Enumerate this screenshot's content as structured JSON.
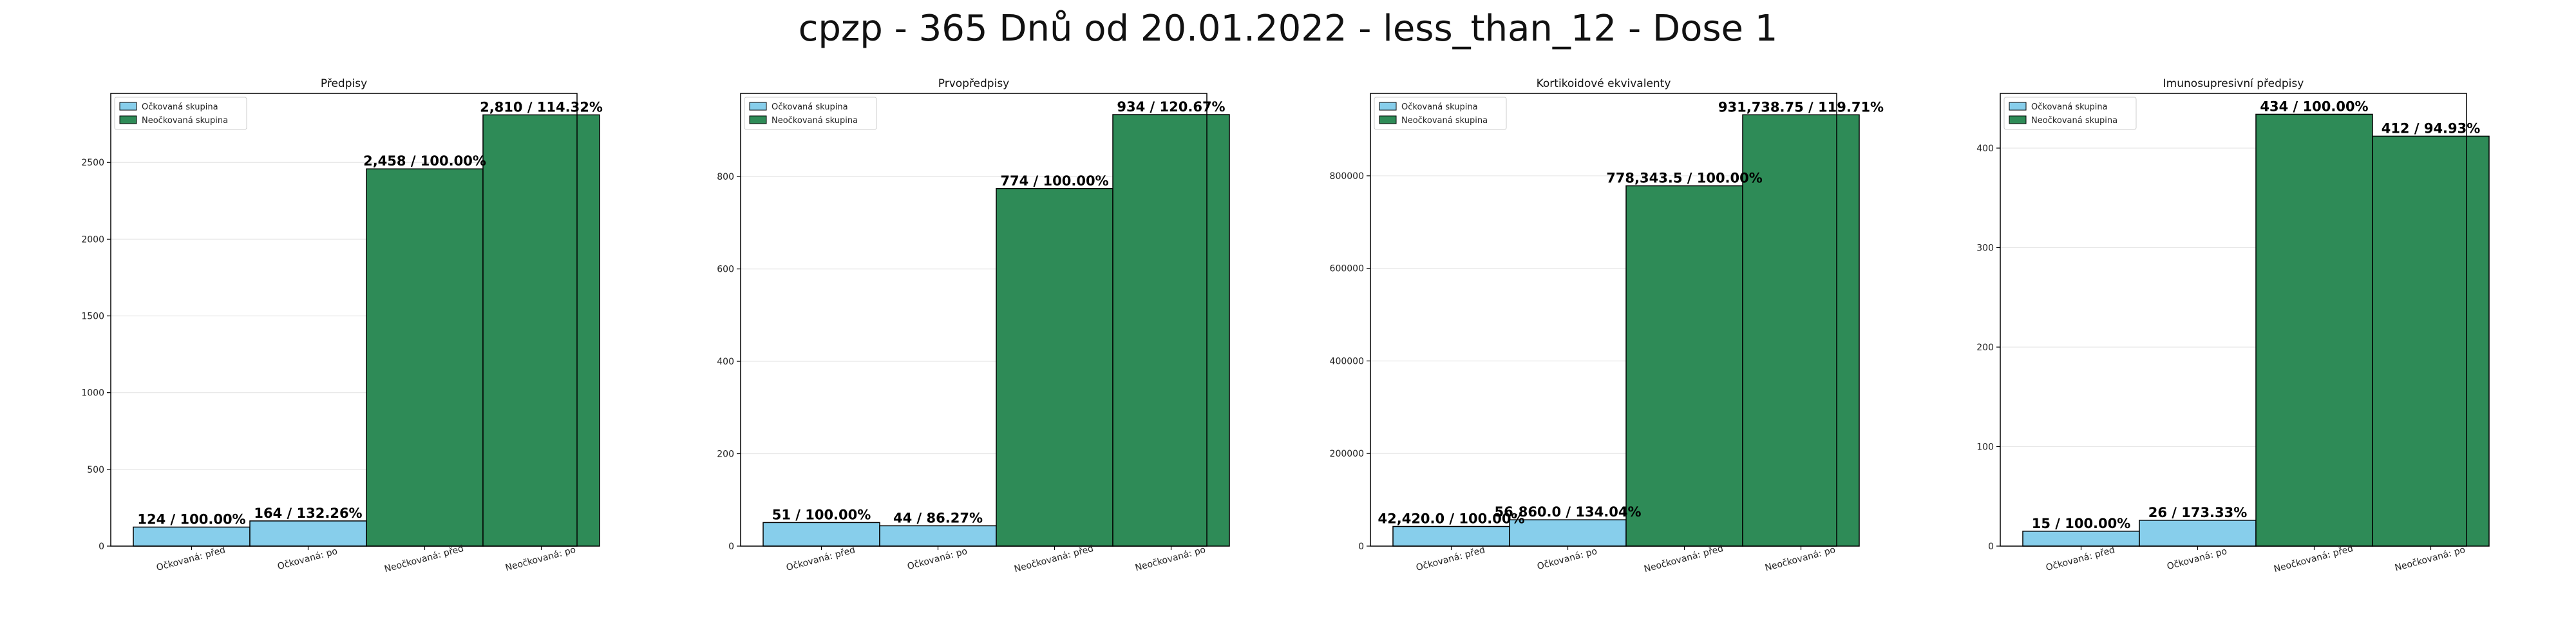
{
  "figure_title": "cpzp - 365 Dnů od 20.01.2022 - less_than_12 - Dose 1",
  "colors": {
    "vaccinated": "#87ceeb",
    "unvaccinated": "#2e8b57",
    "edge": "#000000",
    "grid": "#e6e6e6"
  },
  "chart_data": [
    {
      "type": "bar",
      "title": "Předpisy",
      "categories": [
        "Očkovaná: před",
        "Očkovaná: po",
        "Neočkovaná: před",
        "Neočkovaná: po"
      ],
      "values": [
        124,
        164,
        2458,
        2810
      ],
      "groups": [
        "vaccinated",
        "vaccinated",
        "unvaccinated",
        "unvaccinated"
      ],
      "labels": [
        "124 / 100.00%",
        "164 / 132.26%",
        "2,458 / 100.00%",
        "2,810 / 114.32%"
      ],
      "legend": [
        "Očkovaná skupina",
        "Neočkovaná skupina"
      ],
      "legend_position": "upper left",
      "ylim": [
        0,
        2950
      ],
      "yticks": [
        0,
        500,
        1000,
        1500,
        2000,
        2500
      ],
      "ytick_labels": [
        "0",
        "500",
        "1000",
        "1500",
        "2000",
        "2500"
      ],
      "grid": true
    },
    {
      "type": "bar",
      "title": "Prvopředpisy",
      "categories": [
        "Očkovaná: před",
        "Očkovaná: po",
        "Neočkovaná: před",
        "Neočkovaná: po"
      ],
      "values": [
        51,
        44,
        774,
        934
      ],
      "groups": [
        "vaccinated",
        "vaccinated",
        "unvaccinated",
        "unvaccinated"
      ],
      "labels": [
        "51 / 100.00%",
        "44 / 86.27%",
        "774 / 100.00%",
        "934 / 120.67%"
      ],
      "legend": [
        "Očkovaná skupina",
        "Neočkovaná skupina"
      ],
      "legend_position": "upper left",
      "ylim": [
        0,
        980
      ],
      "yticks": [
        0,
        200,
        400,
        600,
        800
      ],
      "ytick_labels": [
        "0",
        "200",
        "400",
        "600",
        "800"
      ],
      "grid": true
    },
    {
      "type": "bar",
      "title": "Kortikoidové ekvivalenty",
      "categories": [
        "Očkovaná: před",
        "Očkovaná: po",
        "Neočkovaná: před",
        "Neočkovaná: po"
      ],
      "values": [
        42420.0,
        56860.0,
        778343.5,
        931738.75
      ],
      "groups": [
        "vaccinated",
        "vaccinated",
        "unvaccinated",
        "unvaccinated"
      ],
      "labels": [
        "42,420.0 / 100.00%",
        "56,860.0 / 134.04%",
        "778,343.5 / 100.00%",
        "931,738.75 / 119.71%"
      ],
      "legend": [
        "Očkovaná skupina",
        "Neočkovaná skupina"
      ],
      "legend_position": "upper left",
      "ylim": [
        0,
        978000
      ],
      "yticks": [
        0,
        200000,
        400000,
        600000,
        800000
      ],
      "ytick_labels": [
        "0",
        "200000",
        "400000",
        "600000",
        "800000"
      ],
      "grid": true
    },
    {
      "type": "bar",
      "title": "Imunosupresivní předpisy",
      "categories": [
        "Očkovaná: před",
        "Očkovaná: po",
        "Neočkovaná: před",
        "Neočkovaná: po"
      ],
      "values": [
        15,
        26,
        434,
        412
      ],
      "groups": [
        "vaccinated",
        "vaccinated",
        "unvaccinated",
        "unvaccinated"
      ],
      "labels": [
        "15 / 100.00%",
        "26 / 173.33%",
        "434 / 100.00%",
        "412 / 94.93%"
      ],
      "legend": [
        "Očkovaná skupina",
        "Neočkovaná skupina"
      ],
      "legend_position": "upper left",
      "ylim": [
        0,
        455
      ],
      "yticks": [
        0,
        100,
        200,
        300,
        400
      ],
      "ytick_labels": [
        "0",
        "100",
        "200",
        "300",
        "400"
      ],
      "grid": true
    }
  ]
}
